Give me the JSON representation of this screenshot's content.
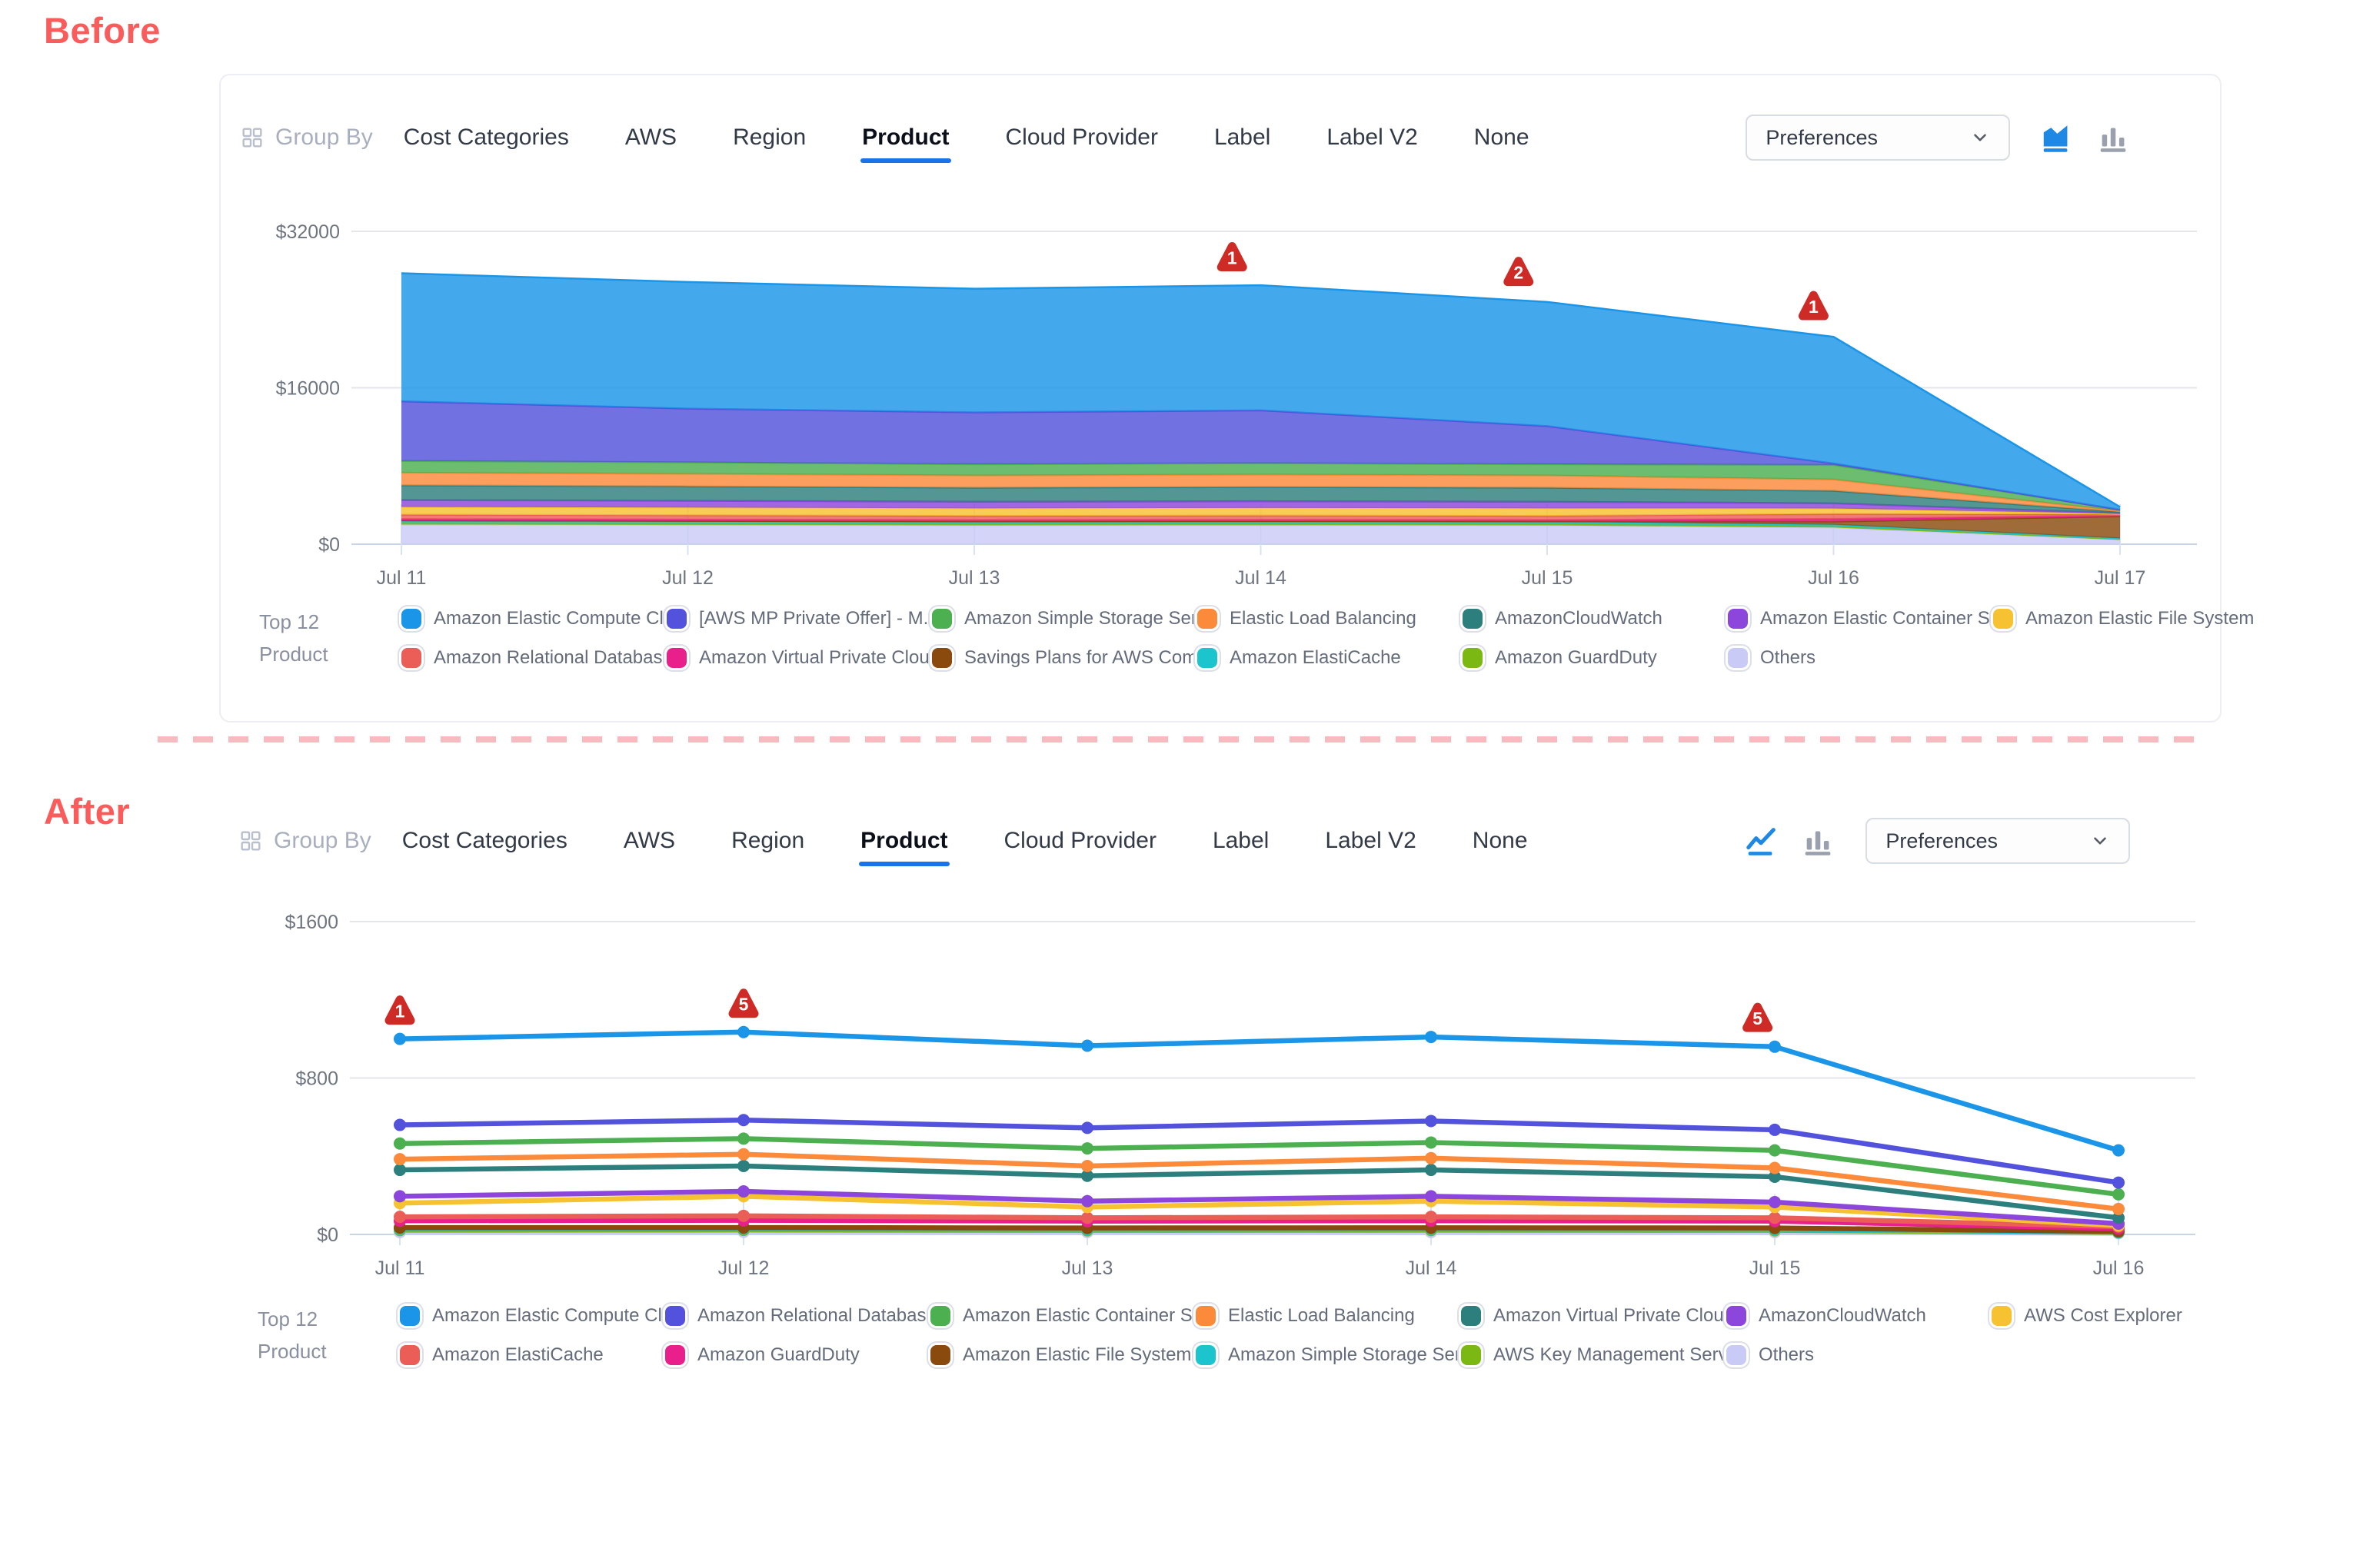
{
  "ui": {
    "before_label": "Before",
    "after_label": "After"
  },
  "toolbar": {
    "group_by": "Group By",
    "tabs": [
      "Cost Categories",
      "AWS",
      "Region",
      "Product",
      "Cloud Provider",
      "Label",
      "Label V2",
      "None"
    ],
    "active_tab": "Product",
    "preferences_label": "Preferences",
    "before_chart_type_icons": [
      "area-chart",
      "bar-chart"
    ],
    "after_chart_type_icons": [
      "line-chart",
      "bar-chart"
    ],
    "active_icon_color": "#1E88E5",
    "inactive_icon_color": "#9AA0AE"
  },
  "legend": {
    "title_line1": "Top 12",
    "title_line2": "Product"
  },
  "colors": {
    "accent_blue": "#1A73E8",
    "marker_red": "#CE2B26",
    "divider_pink": "#F8B9BF",
    "section_label": "#FA5C5C"
  },
  "chart_data": [
    {
      "type": "area",
      "x_labels": [
        "Jul 11",
        "Jul 12",
        "Jul 13",
        "Jul 14",
        "Jul 15",
        "Jul 16",
        "Jul 17"
      ],
      "ylim": [
        0,
        32000
      ],
      "yticks": [
        {
          "value": 0,
          "label": "$0"
        },
        {
          "value": 16000,
          "label": "$16000"
        },
        {
          "value": 32000,
          "label": "$32000"
        }
      ],
      "grid": true,
      "legend_position": "bottom",
      "series": [
        {
          "name": "Amazon Elastic Compute Cl...",
          "color": "#1B95E8",
          "values": [
            13100,
            12950,
            12650,
            12800,
            12700,
            12950,
            280
          ]
        },
        {
          "name": "[AWS MP Private Offer] - M...",
          "color": "#5352DC",
          "values": [
            6100,
            5500,
            5300,
            5400,
            3900,
            150,
            0
          ]
        },
        {
          "name": "Amazon Simple Storage Ser...",
          "color": "#4CAF50",
          "values": [
            1200,
            1180,
            1150,
            1170,
            1150,
            1500,
            130
          ]
        },
        {
          "name": "Elastic Load Balancing",
          "color": "#FB8A3A",
          "values": [
            1300,
            1280,
            1250,
            1270,
            1250,
            1150,
            100
          ]
        },
        {
          "name": "AmazonCloudWatch",
          "color": "#2D7F7D",
          "values": [
            1500,
            1470,
            1440,
            1460,
            1440,
            1280,
            120
          ]
        },
        {
          "name": "Amazon Elastic Container S...",
          "color": "#8C46DC",
          "values": [
            700,
            690,
            670,
            680,
            670,
            520,
            60
          ]
        },
        {
          "name": "Amazon Elastic File System",
          "color": "#F7C231",
          "values": [
            800,
            790,
            770,
            780,
            770,
            560,
            70
          ]
        },
        {
          "name": "Amazon Relational Databas...",
          "color": "#EA5E57",
          "values": [
            450,
            445,
            435,
            440,
            435,
            520,
            130
          ]
        },
        {
          "name": "Amazon Virtual Private Cloud",
          "color": "#E9208C",
          "values": [
            130,
            128,
            125,
            126,
            125,
            260,
            70
          ]
        },
        {
          "name": "Savings Plans for AWS Com...",
          "color": "#8A4A0E",
          "values": [
            45,
            45,
            45,
            45,
            45,
            320,
            2250
          ]
        },
        {
          "name": "Amazon ElastiCache",
          "color": "#1CC5CE",
          "values": [
            220,
            215,
            210,
            212,
            210,
            170,
            70
          ]
        },
        {
          "name": "Amazon GuardDuty",
          "color": "#7CB814",
          "values": [
            170,
            168,
            165,
            166,
            165,
            130,
            50
          ]
        },
        {
          "name": "Others",
          "color": "#C9CAF5",
          "values": [
            2000,
            1960,
            1920,
            1940,
            1920,
            1700,
            480
          ]
        }
      ],
      "markers": [
        {
          "x": 2.9,
          "label": "1"
        },
        {
          "x": 3.9,
          "label": "2"
        },
        {
          "x": 4.93,
          "label": "1"
        }
      ]
    },
    {
      "type": "line",
      "x_labels": [
        "Jul 11",
        "Jul 12",
        "Jul 13",
        "Jul 14",
        "Jul 15",
        "Jul 16"
      ],
      "ylim": [
        0,
        1600
      ],
      "yticks": [
        {
          "value": 0,
          "label": "$0"
        },
        {
          "value": 800,
          "label": "$800"
        },
        {
          "value": 1600,
          "label": "$1600"
        }
      ],
      "grid": true,
      "legend_position": "bottom",
      "series": [
        {
          "name": "Amazon Elastic Compute Cl...",
          "color": "#1B95E8",
          "values": [
            1000,
            1035,
            965,
            1010,
            960,
            430
          ]
        },
        {
          "name": "Amazon Relational Databas...",
          "color": "#5352DC",
          "values": [
            560,
            585,
            545,
            580,
            535,
            265
          ]
        },
        {
          "name": "Amazon Elastic Container S...",
          "color": "#4CAF50",
          "values": [
            465,
            490,
            440,
            470,
            430,
            205
          ]
        },
        {
          "name": "Elastic Load Balancing",
          "color": "#FB8A3A",
          "values": [
            385,
            410,
            350,
            390,
            340,
            130
          ]
        },
        {
          "name": "Amazon Virtual Private Cloud",
          "color": "#2D7F7D",
          "values": [
            330,
            350,
            300,
            330,
            295,
            85
          ]
        },
        {
          "name": "AmazonCloudWatch",
          "color": "#8C46DC",
          "values": [
            195,
            220,
            170,
            195,
            165,
            55
          ]
        },
        {
          "name": "AWS Cost Explorer",
          "color": "#F7C231",
          "values": [
            160,
            195,
            140,
            170,
            140,
            45
          ]
        },
        {
          "name": "Amazon ElastiCache",
          "color": "#EA5E57",
          "values": [
            90,
            95,
            85,
            90,
            85,
            40
          ]
        },
        {
          "name": "Amazon GuardDuty",
          "color": "#E9208C",
          "values": [
            70,
            72,
            68,
            70,
            68,
            30
          ]
        },
        {
          "name": "Amazon Elastic File System",
          "color": "#8A4A0E",
          "values": [
            35,
            35,
            33,
            34,
            33,
            15
          ]
        },
        {
          "name": "Amazon Simple Storage Ser...",
          "color": "#1CC5CE",
          "values": [
            28,
            29,
            27,
            28,
            27,
            12
          ]
        },
        {
          "name": "AWS Key Management Serv...",
          "color": "#7CB814",
          "values": [
            22,
            23,
            21,
            22,
            21,
            10
          ]
        },
        {
          "name": "Others",
          "color": "#C9CAF5",
          "values": [
            12,
            13,
            12,
            12,
            12,
            6
          ]
        }
      ],
      "markers": [
        {
          "x": 0,
          "label": "1"
        },
        {
          "x": 1,
          "label": "5"
        },
        {
          "x": 3.95,
          "label": "5"
        }
      ]
    }
  ]
}
